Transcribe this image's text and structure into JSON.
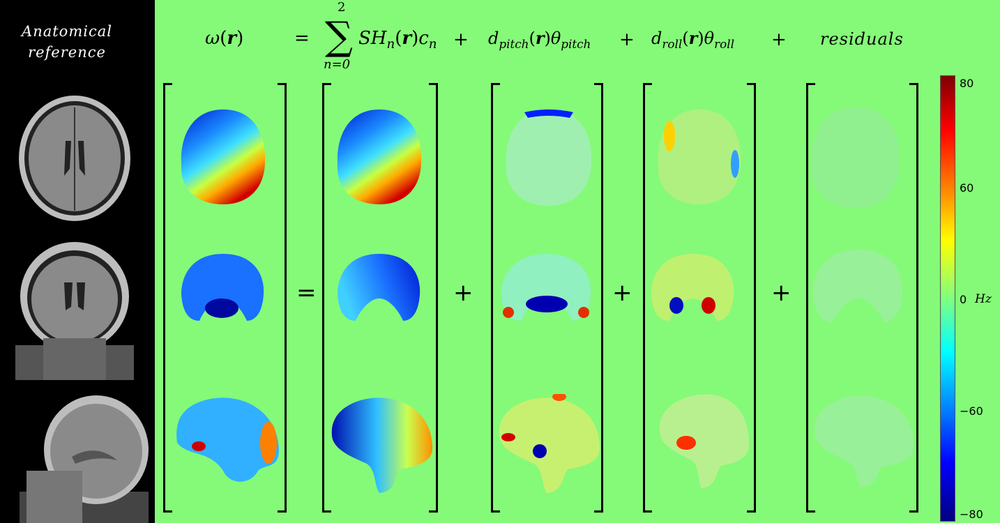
{
  "sidebar": {
    "title_line1": "Anatomical",
    "title_line2": "reference"
  },
  "equation": {
    "lhs_symbol": "ω",
    "lhs_arg": "r",
    "sum_upper": "2",
    "sum_lower": "n=0",
    "term_sh": "SH",
    "term_residuals": "residuals",
    "sub_n": "n",
    "sub_pitch": "pitch",
    "sub_roll": "roll"
  },
  "colorbar": {
    "ticks": [
      "80",
      "60",
      "0",
      "−60",
      "−80"
    ],
    "unit": "Hz",
    "colormap": "jet",
    "range": [
      -80,
      80
    ]
  },
  "colors": {
    "background": "#85fa78",
    "sidebar": "#000000"
  }
}
